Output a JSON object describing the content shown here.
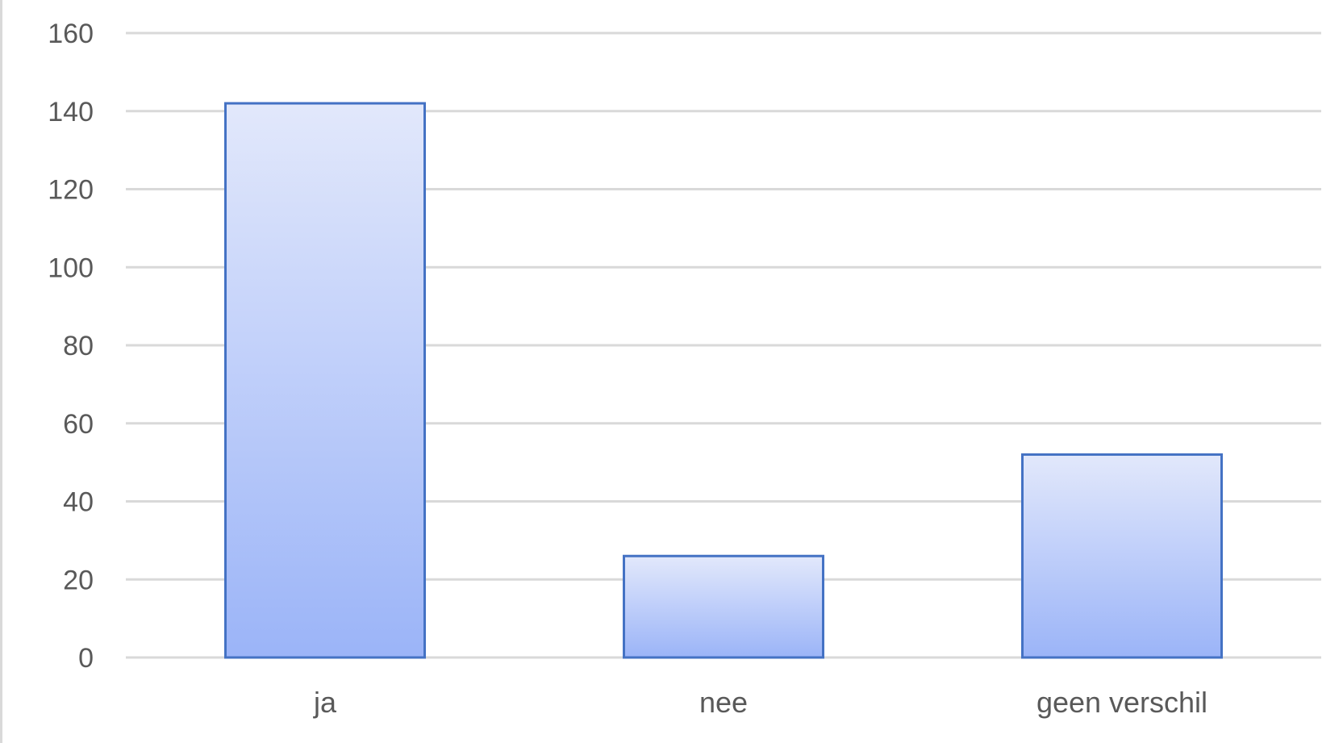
{
  "chart_data": {
    "type": "bar",
    "categories": [
      "ja",
      "nee",
      "geen verschil"
    ],
    "values": [
      142,
      26,
      52
    ],
    "ylim": [
      0,
      160
    ],
    "yticks": [
      0,
      20,
      40,
      60,
      80,
      100,
      120,
      140,
      160
    ],
    "grid": true,
    "legend": "none",
    "colors": {
      "bar_fill_top": "#e2e8fb",
      "bar_fill_bottom": "#9bb4f8",
      "bar_stroke": "#4472c4",
      "grid": "#d9d9d9",
      "text": "#595959"
    }
  }
}
